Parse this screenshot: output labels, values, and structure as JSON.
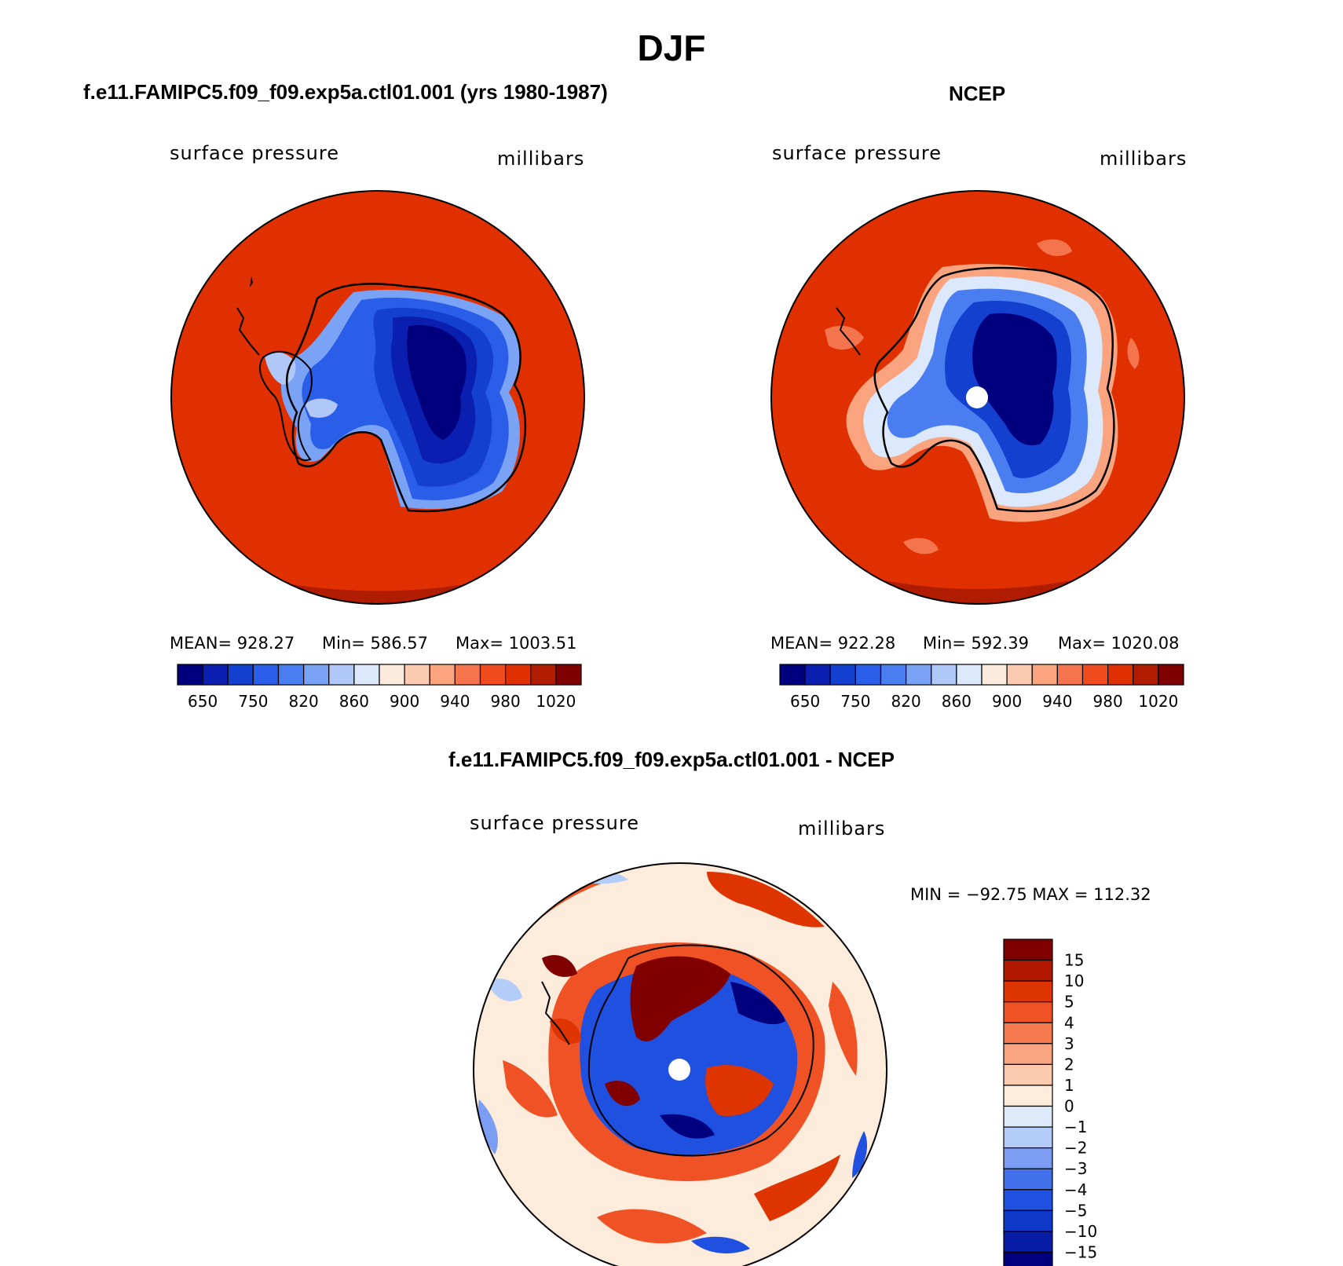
{
  "page": {
    "main_title": "DJF"
  },
  "palettes": {
    "full_field": [
      "#00007f",
      "#0a1fb0",
      "#1440d0",
      "#2a5ee8",
      "#4a7df0",
      "#7aa2f5",
      "#b0c8f8",
      "#dce8fb",
      "#fcebdc",
      "#fccab0",
      "#f9a47f",
      "#f4744d",
      "#ef4b1f",
      "#e03000",
      "#b01c00",
      "#7f0000"
    ],
    "difference": [
      "#00007f",
      "#061ca4",
      "#0f38c8",
      "#2050e0",
      "#4270ea",
      "#7c9ef2",
      "#b4ccf8",
      "#dceaf9",
      "#fdecdc",
      "#fccaae",
      "#f9a480",
      "#f57a50",
      "#ef5224",
      "#dd3400",
      "#b01800",
      "#800000"
    ]
  },
  "chart_data": [
    {
      "type": "heatmap",
      "title": "f.e11.FAMIPC5.f09_f09.exp5a.ctl01.001 (yrs 1980-1987)",
      "variable_label": "surface pressure",
      "units_label": "millibars",
      "stats_text": {
        "mean": "MEAN= 928.27",
        "min": "Min= 586.57",
        "max": "Max= 1003.51"
      },
      "projection": "south polar stereographic",
      "colorbar_tick_labels": [
        "650",
        "750",
        "820",
        "860",
        "900",
        "940",
        "980",
        "1020"
      ]
    },
    {
      "type": "heatmap",
      "title": "NCEP",
      "variable_label": "surface pressure",
      "units_label": "millibars",
      "stats_text": {
        "mean": "MEAN= 922.28",
        "min": "Min= 592.39",
        "max": "Max= 1020.08"
      },
      "projection": "south polar stereographic",
      "colorbar_tick_labels": [
        "650",
        "750",
        "820",
        "860",
        "900",
        "940",
        "980",
        "1020"
      ]
    },
    {
      "type": "heatmap",
      "title": "f.e11.FAMIPC5.f09_f09.exp5a.ctl01.001 - NCEP",
      "variable_label": "surface pressure",
      "units_label": "millibars",
      "minmax_text": "MIN = −92.75 MAX = 112.32",
      "projection": "south polar stereographic",
      "colorbar_tick_labels": [
        "15",
        "10",
        "5",
        "4",
        "3",
        "2",
        "1",
        "0",
        "−1",
        "−2",
        "−3",
        "−4",
        "−5",
        "−10",
        "−15"
      ]
    }
  ]
}
